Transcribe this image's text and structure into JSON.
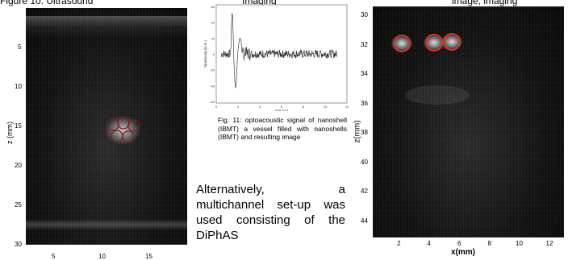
{
  "header": {
    "left": "Figure 10: Ultrasound",
    "middle": "Imaging",
    "right": "image, imaging"
  },
  "left_image": {
    "y_axis": {
      "label": "z (mm)",
      "ticks": [
        "5",
        "10",
        "15",
        "20",
        "25",
        "30"
      ]
    },
    "x_axis": {
      "ticks": [
        "5",
        "10",
        "15"
      ]
    }
  },
  "waveform": {
    "y_label": "Spannung (in E.)",
    "x_label": "Zeit (µs)",
    "y_ticks": [
      "60",
      "40",
      "20",
      "0",
      "-20",
      "-40",
      "-60"
    ],
    "x_ticks": [
      "0",
      "2",
      "4",
      "6",
      "8",
      "10",
      "12"
    ]
  },
  "caption": {
    "text": "Fig. 11: optoacoustic signal of nanoshell (IBMT) a vessel filled with nanoshells (IBMT) and resulting image"
  },
  "body": {
    "text": "Alternatively, a multichannel set-up was used consisting of the DiPhAS"
  },
  "right_image": {
    "y_axis": {
      "label": "z(mm)",
      "ticks": [
        "30",
        "32",
        "34",
        "36",
        "38",
        "40",
        "42",
        "44"
      ]
    },
    "x_axis": {
      "label": "x(mm)",
      "ticks": [
        "2",
        "4",
        "6",
        "8",
        "10",
        "12"
      ]
    }
  },
  "colors": {
    "marker": "#e0302a",
    "signal": "#222222"
  }
}
